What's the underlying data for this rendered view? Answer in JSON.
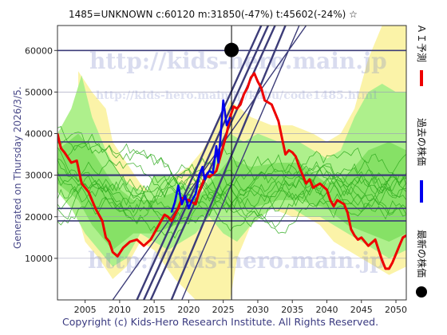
{
  "chart_data": {
    "type": "line",
    "title": "1485=UNKNOWN    c:60120  m:31850(-47%)  t:45602(-24%)  ☆",
    "side_label": "Generated on Thursday 2026/3/5.",
    "footer": "Copyright (c) Kids-Hero Research Institute. All Rights Reserved.",
    "watermark": "http://kids-hero.main.jp",
    "watermark2": "http://kids-hero.main.jp/kabu/code1485.html",
    "xlim": [
      2001,
      2051.5
    ],
    "ylim": [
      0,
      66000
    ],
    "x_ticks": [
      "2005",
      "2010",
      "2015",
      "2020",
      "2025",
      "2030",
      "2035",
      "2040",
      "2045",
      "2050"
    ],
    "y_ticks": [
      "10000",
      "20000",
      "30000",
      "40000",
      "50000",
      "60000"
    ],
    "legend": [
      {
        "label": "ＡＩ予測",
        "color": "#ee0000"
      },
      {
        "label": "過去の株価",
        "color": "#0000ee"
      },
      {
        "label": "最新の株価",
        "color": "#000000"
      }
    ],
    "current_marker": {
      "x": 2026.2,
      "y": 60120
    },
    "current_year_line": 2026.2,
    "horizontal_levels": [
      60000,
      38000,
      30000,
      22000,
      19000
    ],
    "series": [
      {
        "name": "ＡＩ予測",
        "color": "#ee0000",
        "x": [
          2001,
          2001.5,
          2002,
          2003,
          2003.8,
          2004.5,
          2005.5,
          2006.5,
          2007.5,
          2008,
          2008.5,
          2009,
          2009.7,
          2010.5,
          2011.5,
          2012.5,
          2013.5,
          2014.5,
          2015,
          2016,
          2016.5,
          2017,
          2017.5,
          2018,
          2018.5,
          2019,
          2020,
          2021,
          2021.5,
          2022,
          2022.5,
          2023,
          2024,
          2024.5,
          2025,
          2025.5,
          2026,
          2026.5,
          2027,
          2027.5,
          2028,
          2028.5,
          2029,
          2029.5,
          2030,
          2030.5,
          2031,
          2032,
          2033,
          2033.5,
          2034,
          2034.5,
          2035,
          2035.5,
          2036,
          2036.5,
          2037,
          2037.5,
          2038,
          2039,
          2040,
          2040.5,
          2041,
          2041.5,
          2042,
          2042.5,
          2043,
          2043.5,
          2044,
          2044.5,
          2045,
          2046,
          2047,
          2047.5,
          2048,
          2048.5,
          2049,
          2049.5,
          2050,
          2050.5,
          2051,
          2051.5
        ],
        "values": [
          40000,
          36500,
          35500,
          33000,
          33500,
          28000,
          26000,
          22000,
          19000,
          15000,
          14000,
          11500,
          10500,
          12500,
          14000,
          14500,
          13000,
          14500,
          16000,
          19000,
          20500,
          20000,
          19000,
          20500,
          22000,
          24500,
          24000,
          23000,
          26000,
          28000,
          30000,
          29500,
          31000,
          34000,
          37000,
          40000,
          44000,
          46500,
          46000,
          47000,
          49500,
          51000,
          53500,
          54500,
          52500,
          51000,
          48000,
          47000,
          43000,
          39000,
          35000,
          36000,
          35500,
          34500,
          32000,
          30000,
          28000,
          29000,
          27000,
          28000,
          26500,
          24000,
          22500,
          24000,
          23500,
          23000,
          21000,
          17000,
          15500,
          14500,
          15000,
          13000,
          14500,
          12000,
          9500,
          7500,
          7500,
          9000,
          11000,
          13000,
          15000,
          15500
        ]
      },
      {
        "name": "過去の株価",
        "color": "#0000ee",
        "x": [
          2017.5,
          2018,
          2018.5,
          2019,
          2019.5,
          2020,
          2020.5,
          2021,
          2021.5,
          2022,
          2022.3,
          2022.7,
          2023,
          2023.5,
          2024,
          2024.3,
          2024.6,
          2025,
          2025.5,
          2026
        ],
        "values": [
          21000,
          23500,
          27500,
          23000,
          25000,
          22000,
          24000,
          25500,
          30000,
          32000,
          29000,
          30500,
          31000,
          30500,
          37000,
          33000,
          39000,
          48000,
          42000,
          44000
        ]
      }
    ]
  }
}
